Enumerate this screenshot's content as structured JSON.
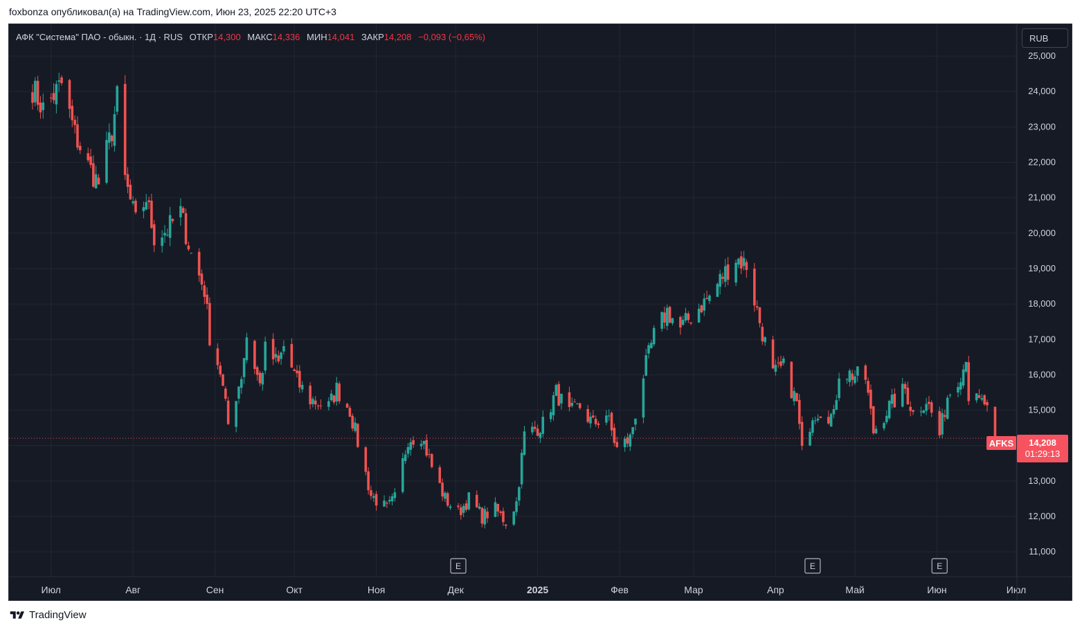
{
  "publisher_line": "foxbonza опубликовал(а) на TradingView.com, Июн 23, 2025 22:20 UTC+3",
  "header": {
    "symbol": "АФК \"Система\" ПАО - обыкн. · 1Д · RUS",
    "open_label": "ОТКР",
    "open": "14,300",
    "high_label": "МАКС",
    "high": "14,336",
    "low_label": "МИН",
    "low": "14,041",
    "close_label": "ЗАКР",
    "close": "14,208",
    "change": "−0,093 (−0,65%)"
  },
  "currency": "RUB",
  "ticker": "AFKS",
  "last_price": "14,208",
  "countdown": "01:29:13",
  "earnings_marker": "E",
  "footer_brand": "TradingView",
  "colors": {
    "up": "#26a69a",
    "down": "#ef5350",
    "background": "#161a25",
    "grid": "#232733",
    "text": "#d1d4dc"
  },
  "chart_data": {
    "type": "candlestick",
    "x_tick_labels": [
      "Июл",
      "Авг",
      "Сен",
      "Окт",
      "Ноя",
      "Дек",
      "2025",
      "Фев",
      "Мар",
      "Апр",
      "Май",
      "Июн",
      "Июл"
    ],
    "y_tick_labels": [
      "11,000",
      "12,000",
      "13,000",
      "14,000",
      "15,000",
      "16,000",
      "17,000",
      "18,000",
      "19,000",
      "20,000",
      "21,000",
      "22,000",
      "23,000",
      "24,000",
      "25,000"
    ],
    "ylim": [
      10300,
      25900
    ],
    "start_date": "2024-06-24",
    "last_close": 14.208,
    "earnings_markers": [
      "2024-12-02",
      "2025-04-15",
      "2025-06-02"
    ],
    "waypoints": [
      [
        "2024-06-24",
        24.1
      ],
      [
        "2024-06-28",
        23.5
      ],
      [
        "2024-07-05",
        24.2
      ],
      [
        "2024-07-10",
        22.8
      ],
      [
        "2024-07-15",
        21.9
      ],
      [
        "2024-07-19",
        21.4
      ],
      [
        "2024-07-24",
        22.9
      ],
      [
        "2024-07-26",
        23.8
      ],
      [
        "2024-07-29",
        21.5
      ],
      [
        "2024-08-02",
        20.3
      ],
      [
        "2024-08-06",
        21.0
      ],
      [
        "2024-08-09",
        19.9
      ],
      [
        "2024-08-14",
        20.1
      ],
      [
        "2024-08-19",
        20.6
      ],
      [
        "2024-08-23",
        19.4
      ],
      [
        "2024-08-28",
        18.4
      ],
      [
        "2024-08-30",
        17.1
      ],
      [
        "2024-09-03",
        16.1
      ],
      [
        "2024-09-06",
        14.6
      ],
      [
        "2024-09-11",
        16.0
      ],
      [
        "2024-09-13",
        17.1
      ],
      [
        "2024-09-18",
        15.7
      ],
      [
        "2024-09-20",
        16.7
      ],
      [
        "2024-09-25",
        16.3
      ],
      [
        "2024-09-27",
        16.8
      ],
      [
        "2024-10-02",
        15.8
      ],
      [
        "2024-10-07",
        15.3
      ],
      [
        "2024-10-14",
        15.1
      ],
      [
        "2024-10-17",
        15.6
      ],
      [
        "2024-10-22",
        15.0
      ],
      [
        "2024-10-25",
        14.1
      ],
      [
        "2024-10-30",
        12.6
      ],
      [
        "2024-11-05",
        12.2
      ],
      [
        "2024-11-08",
        12.5
      ],
      [
        "2024-11-13",
        14.2
      ],
      [
        "2024-11-18",
        14.3
      ],
      [
        "2024-11-22",
        13.4
      ],
      [
        "2024-11-27",
        12.5
      ],
      [
        "2024-12-02",
        12.1
      ],
      [
        "2024-12-06",
        12.5
      ],
      [
        "2024-12-11",
        12.0
      ],
      [
        "2024-12-16",
        12.2
      ],
      [
        "2024-12-20",
        11.85
      ],
      [
        "2024-12-24",
        12.4
      ],
      [
        "2024-12-27",
        14.3
      ],
      [
        "2025-01-03",
        14.6
      ],
      [
        "2025-01-08",
        15.5
      ],
      [
        "2025-01-13",
        14.9
      ],
      [
        "2025-01-17",
        15.1
      ],
      [
        "2025-01-22",
        14.6
      ],
      [
        "2025-01-27",
        14.9
      ],
      [
        "2025-01-31",
        13.9
      ],
      [
        "2025-02-05",
        14.2
      ],
      [
        "2025-02-10",
        16.0
      ],
      [
        "2025-02-14",
        17.1
      ],
      [
        "2025-02-19",
        17.8
      ],
      [
        "2025-02-24",
        17.3
      ],
      [
        "2025-03-03",
        17.9
      ],
      [
        "2025-03-07",
        18.2
      ],
      [
        "2025-03-12",
        18.8
      ],
      [
        "2025-03-17",
        19.3
      ],
      [
        "2025-03-21",
        19.1
      ],
      [
        "2025-03-25",
        17.8
      ],
      [
        "2025-03-31",
        16.0
      ],
      [
        "2025-04-04",
        16.2
      ],
      [
        "2025-04-09",
        15.2
      ],
      [
        "2025-04-11",
        13.8
      ],
      [
        "2025-04-15",
        14.9
      ],
      [
        "2025-04-18",
        15.0
      ],
      [
        "2025-04-23",
        14.8
      ],
      [
        "2025-04-25",
        16.1
      ],
      [
        "2025-05-05",
        15.9
      ],
      [
        "2025-05-08",
        14.4
      ],
      [
        "2025-05-14",
        15.1
      ],
      [
        "2025-05-20",
        15.6
      ],
      [
        "2025-05-23",
        14.9
      ],
      [
        "2025-05-28",
        15.3
      ],
      [
        "2025-06-02",
        14.3
      ],
      [
        "2025-06-05",
        15.4
      ],
      [
        "2025-06-11",
        16.2
      ],
      [
        "2025-06-12",
        16.6
      ],
      [
        "2025-06-13",
        15.4
      ],
      [
        "2025-06-17",
        15.2
      ],
      [
        "2025-06-19",
        15.2
      ],
      [
        "2025-06-23",
        14.208
      ]
    ]
  }
}
